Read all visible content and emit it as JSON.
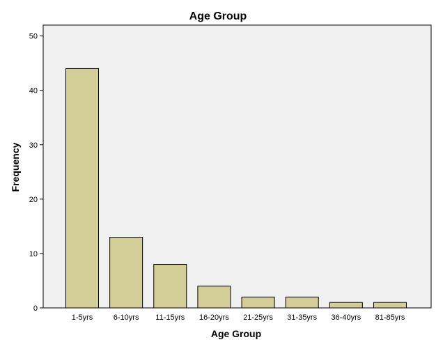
{
  "chart_data": {
    "type": "bar",
    "title": "Age Group",
    "xlabel": "Age Group",
    "ylabel": "Frequency",
    "categories": [
      "1-5yrs",
      "6-10yrs",
      "11-15yrs",
      "16-20yrs",
      "21-25yrs",
      "31-35yrs",
      "36-40yrs",
      "81-85yrs"
    ],
    "values": [
      44,
      13,
      8,
      4,
      2,
      2,
      1,
      1
    ],
    "ylim": [
      0,
      52
    ],
    "yticks": [
      0,
      10,
      20,
      30,
      40,
      50
    ],
    "grid": false,
    "legend": "none",
    "colors": {
      "bar_fill": "#d3ce97",
      "bar_stroke": "#000000",
      "plot_background": "#f0f0f0"
    }
  }
}
